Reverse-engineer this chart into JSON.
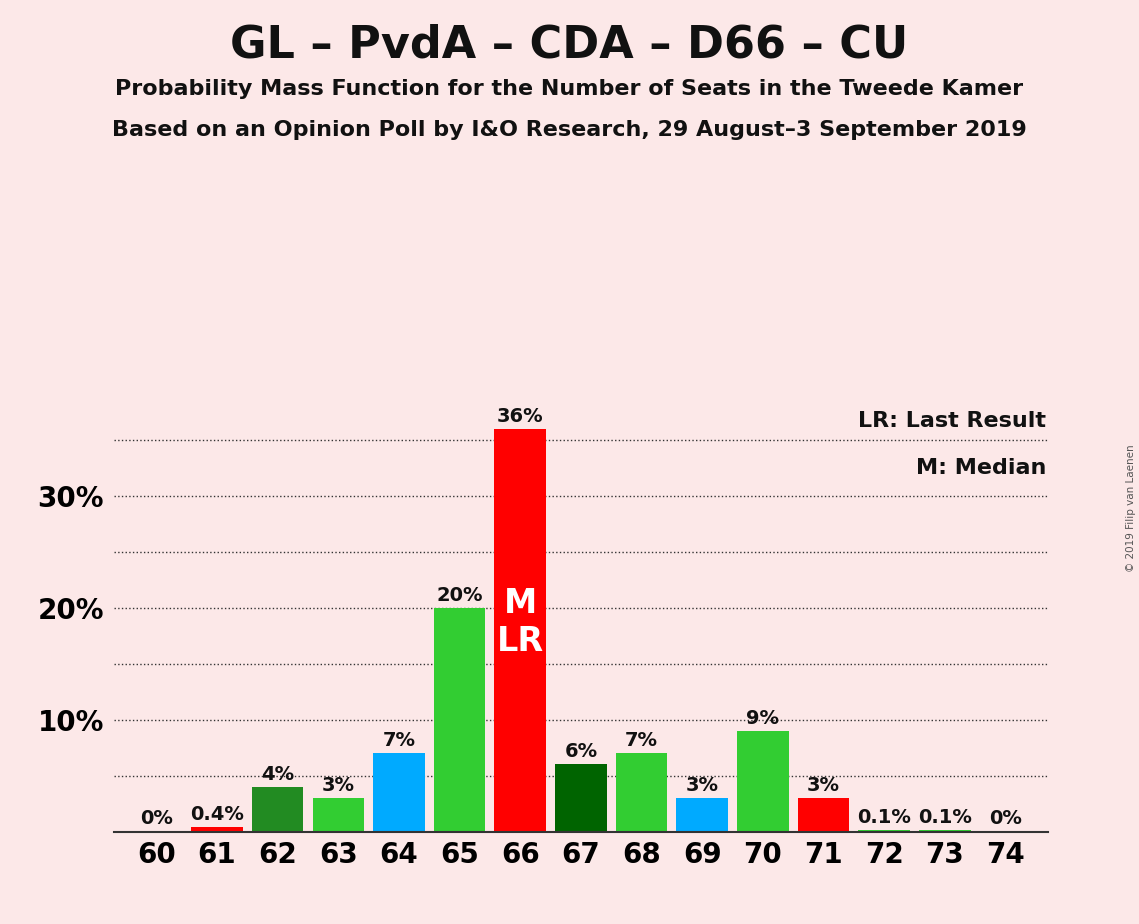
{
  "title": "GL – PvdA – CDA – D66 – CU",
  "subtitle1": "Probability Mass Function for the Number of Seats in the Tweede Kamer",
  "subtitle2": "Based on an Opinion Poll by I&O Research, 29 August–3 September 2019",
  "copyright": "© 2019 Filip van Laenen",
  "legend_lr": "LR: Last Result",
  "legend_m": "M: Median",
  "background_color": "#fce8e8",
  "seats": [
    60,
    61,
    62,
    63,
    64,
    65,
    66,
    67,
    68,
    69,
    70,
    71,
    72,
    73,
    74
  ],
  "values": [
    0.0,
    0.4,
    4.0,
    3.0,
    7.0,
    20.0,
    36.0,
    6.0,
    7.0,
    3.0,
    9.0,
    3.0,
    0.1,
    0.1,
    0.0
  ],
  "labels": [
    "0%",
    "0.4%",
    "4%",
    "3%",
    "7%",
    "20%",
    "36%",
    "6%",
    "7%",
    "3%",
    "9%",
    "3%",
    "0.1%",
    "0.1%",
    "0%"
  ],
  "bar_colors": [
    "#ff0000",
    "#ff0000",
    "#228B22",
    "#32CD32",
    "#00AAFF",
    "#32CD32",
    "#ff0000",
    "#006400",
    "#32CD32",
    "#00AAFF",
    "#32CD32",
    "#ff0000",
    "#32CD32",
    "#32CD32",
    "#32CD32"
  ],
  "median_seat": 66,
  "lr_seat": 66,
  "ylim": [
    0,
    38
  ],
  "grid_color": "#333333",
  "bar_label_color": "#111111",
  "median_label_color": "#ffffff",
  "title_fontsize": 32,
  "subtitle_fontsize": 16,
  "label_fontsize": 14,
  "axis_fontsize": 20
}
